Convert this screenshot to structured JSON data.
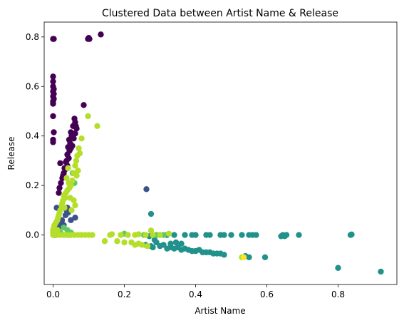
{
  "chart_data": {
    "type": "scatter",
    "title": "Clustered Data between Artist Name & Release",
    "xlabel": "Artist Name",
    "ylabel": "Release",
    "xlim": [
      -0.025,
      0.965
    ],
    "ylim": [
      -0.2,
      0.86
    ],
    "xticks": [
      0.0,
      0.2,
      0.4,
      0.6,
      0.8
    ],
    "xtick_labels": [
      "0.0",
      "0.2",
      "0.4",
      "0.6",
      "0.8"
    ],
    "yticks": [
      0.0,
      0.2,
      0.4,
      0.6,
      0.8
    ],
    "ytick_labels": [
      "0.0",
      "0.2",
      "0.4",
      "0.6",
      "0.8"
    ],
    "grid": false,
    "legend": "none",
    "series": [
      {
        "color": "#440154",
        "points": [
          [
            0.0,
            0.792
          ],
          [
            0.002,
            0.792
          ],
          [
            0.098,
            0.792
          ],
          [
            0.1,
            0.796
          ],
          [
            0.102,
            0.792
          ],
          [
            0.134,
            0.81
          ],
          [
            0.0,
            0.64
          ],
          [
            0.0,
            0.62
          ],
          [
            0.0,
            0.6
          ],
          [
            0.002,
            0.59
          ],
          [
            0.0,
            0.58
          ],
          [
            0.002,
            0.57
          ],
          [
            0.0,
            0.56
          ],
          [
            0.002,
            0.55
          ],
          [
            0.0,
            0.54
          ],
          [
            0.0,
            0.53
          ],
          [
            0.0,
            0.48
          ],
          [
            0.002,
            0.415
          ],
          [
            0.0,
            0.385
          ],
          [
            0.0,
            0.375
          ],
          [
            0.086,
            0.525
          ],
          [
            0.06,
            0.47
          ],
          [
            0.062,
            0.455
          ],
          [
            0.056,
            0.44
          ],
          [
            0.066,
            0.43
          ],
          [
            0.05,
            0.415
          ],
          [
            0.052,
            0.4
          ],
          [
            0.045,
            0.385
          ],
          [
            0.048,
            0.37
          ],
          [
            0.042,
            0.355
          ],
          [
            0.046,
            0.34
          ],
          [
            0.04,
            0.325
          ],
          [
            0.044,
            0.31
          ],
          [
            0.036,
            0.295
          ],
          [
            0.04,
            0.28
          ],
          [
            0.034,
            0.265
          ],
          [
            0.03,
            0.25
          ],
          [
            0.026,
            0.23
          ],
          [
            0.022,
            0.21
          ],
          [
            0.02,
            0.29
          ],
          [
            0.018,
            0.19
          ],
          [
            0.016,
            0.17
          ],
          [
            0.054,
            0.36
          ],
          [
            0.058,
            0.39
          ],
          [
            0.05,
            0.35
          ],
          [
            0.038,
            0.3
          ],
          [
            0.032,
            0.27
          ],
          [
            0.028,
            0.24
          ],
          [
            0.062,
            0.41
          ],
          [
            0.064,
            0.44
          ]
        ]
      },
      {
        "color": "#3b528b",
        "points": [
          [
            0.262,
            0.185
          ],
          [
            0.04,
            0.11
          ],
          [
            0.042,
            0.09
          ],
          [
            0.035,
            0.08
          ],
          [
            0.01,
            0.11
          ],
          [
            0.062,
            0.07
          ],
          [
            0.05,
            0.06
          ],
          [
            0.02,
            0.05
          ],
          [
            0.015,
            0.03
          ],
          [
            0.03,
            0.04
          ],
          [
            0.01,
            0.02
          ],
          [
            0.038,
            0.1
          ],
          [
            0.025,
            0.06
          ],
          [
            0.005,
            0.0
          ]
        ]
      },
      {
        "color": "#21918c",
        "points": [
          [
            0.275,
            0.085
          ],
          [
            0.27,
            -0.005
          ],
          [
            0.3,
            0.0
          ],
          [
            0.32,
            0.0
          ],
          [
            0.34,
            0.0
          ],
          [
            0.37,
            0.0
          ],
          [
            0.39,
            0.0
          ],
          [
            0.4,
            0.0
          ],
          [
            0.43,
            0.0
          ],
          [
            0.44,
            0.0
          ],
          [
            0.47,
            0.0
          ],
          [
            0.48,
            0.0
          ],
          [
            0.5,
            0.0
          ],
          [
            0.53,
            0.0
          ],
          [
            0.55,
            0.0
          ],
          [
            0.56,
            0.0
          ],
          [
            0.57,
            0.0
          ],
          [
            0.64,
            -0.005
          ],
          [
            0.645,
            0.0
          ],
          [
            0.65,
            -0.005
          ],
          [
            0.655,
            0.0
          ],
          [
            0.69,
            0.0
          ],
          [
            0.835,
            0.0
          ],
          [
            0.838,
            0.002
          ],
          [
            0.8,
            -0.133
          ],
          [
            0.92,
            -0.148
          ],
          [
            0.26,
            -0.04
          ],
          [
            0.275,
            -0.045
          ],
          [
            0.28,
            -0.05
          ],
          [
            0.29,
            -0.03
          ],
          [
            0.3,
            -0.045
          ],
          [
            0.31,
            -0.04
          ],
          [
            0.32,
            -0.055
          ],
          [
            0.33,
            -0.05
          ],
          [
            0.34,
            -0.055
          ],
          [
            0.35,
            -0.05
          ],
          [
            0.36,
            -0.06
          ],
          [
            0.37,
            -0.055
          ],
          [
            0.38,
            -0.06
          ],
          [
            0.39,
            -0.065
          ],
          [
            0.4,
            -0.065
          ],
          [
            0.41,
            -0.06
          ],
          [
            0.42,
            -0.07
          ],
          [
            0.43,
            -0.07
          ],
          [
            0.44,
            -0.07
          ],
          [
            0.45,
            -0.075
          ],
          [
            0.46,
            -0.075
          ],
          [
            0.47,
            -0.075
          ],
          [
            0.48,
            -0.08
          ],
          [
            0.54,
            -0.085
          ],
          [
            0.55,
            -0.09
          ],
          [
            0.595,
            -0.09
          ],
          [
            0.36,
            -0.035
          ],
          [
            0.345,
            -0.03
          ],
          [
            0.33,
            -0.035
          ],
          [
            0.285,
            -0.02
          ]
        ]
      },
      {
        "color": "#5ec962",
        "points": [
          [
            0.03,
            0.03
          ],
          [
            0.02,
            0.01
          ],
          [
            0.04,
            0.02
          ],
          [
            0.05,
            0.01
          ],
          [
            0.055,
            0.25
          ],
          [
            0.06,
            0.21
          ],
          [
            0.2,
            0.005
          ],
          [
            0.255,
            0.0
          ],
          [
            0.29,
            0.0
          ],
          [
            0.31,
            0.0
          ],
          [
            0.01,
            0.0
          ],
          [
            0.045,
            0.0
          ],
          [
            0.03,
            0.0
          ]
        ]
      },
      {
        "color": "#b5de2b",
        "points": [
          [
            0.098,
            0.48
          ],
          [
            0.124,
            0.44
          ],
          [
            0.08,
            0.39
          ],
          [
            0.072,
            0.35
          ],
          [
            0.075,
            0.33
          ],
          [
            0.068,
            0.32
          ],
          [
            0.065,
            0.3
          ],
          [
            0.062,
            0.28
          ],
          [
            0.07,
            0.26
          ],
          [
            0.066,
            0.24
          ],
          [
            0.058,
            0.25
          ],
          [
            0.054,
            0.22
          ],
          [
            0.05,
            0.2
          ],
          [
            0.046,
            0.19
          ],
          [
            0.04,
            0.18
          ],
          [
            0.036,
            0.17
          ],
          [
            0.03,
            0.16
          ],
          [
            0.034,
            0.15
          ],
          [
            0.028,
            0.14
          ],
          [
            0.024,
            0.12
          ],
          [
            0.02,
            0.1
          ],
          [
            0.016,
            0.08
          ],
          [
            0.012,
            0.06
          ],
          [
            0.008,
            0.05
          ],
          [
            0.004,
            0.04
          ],
          [
            0.002,
            0.03
          ],
          [
            0.0,
            0.02
          ],
          [
            0.0,
            0.01
          ],
          [
            0.0,
            0.0
          ],
          [
            0.01,
            0.0
          ],
          [
            0.02,
            0.0
          ],
          [
            0.03,
            0.0
          ],
          [
            0.04,
            0.0
          ],
          [
            0.05,
            0.0
          ],
          [
            0.06,
            0.0
          ],
          [
            0.07,
            0.0
          ],
          [
            0.08,
            0.0
          ],
          [
            0.09,
            0.0
          ],
          [
            0.1,
            0.0
          ],
          [
            0.11,
            0.0
          ],
          [
            0.16,
            0.0
          ],
          [
            0.165,
            0.003
          ],
          [
            0.19,
            0.0
          ],
          [
            0.21,
            0.0
          ],
          [
            0.23,
            0.0
          ],
          [
            0.24,
            0.003
          ],
          [
            0.26,
            0.0
          ],
          [
            0.28,
            0.0
          ],
          [
            0.3,
            0.0
          ],
          [
            0.325,
            0.005
          ],
          [
            0.145,
            -0.025
          ],
          [
            0.18,
            -0.025
          ],
          [
            0.2,
            -0.03
          ],
          [
            0.22,
            -0.03
          ],
          [
            0.24,
            -0.035
          ],
          [
            0.23,
            -0.04
          ],
          [
            0.25,
            -0.04
          ],
          [
            0.265,
            -0.045
          ],
          [
            0.275,
            0.018
          ],
          [
            0.53,
            -0.09
          ],
          [
            0.042,
            0.27
          ],
          [
            0.038,
            0.23
          ],
          [
            0.044,
            0.21
          ],
          [
            0.026,
            0.13
          ],
          [
            0.032,
            0.11
          ],
          [
            0.018,
            0.09
          ],
          [
            0.014,
            0.07
          ],
          [
            0.048,
            0.15
          ],
          [
            0.058,
            0.14
          ],
          [
            0.062,
            0.12
          ],
          [
            0.052,
            0.1
          ],
          [
            0.012,
            0.02
          ],
          [
            0.006,
            0.01
          ]
        ]
      },
      {
        "color": "#fde725",
        "points": [
          [
            0.535,
            -0.09
          ]
        ]
      }
    ]
  }
}
